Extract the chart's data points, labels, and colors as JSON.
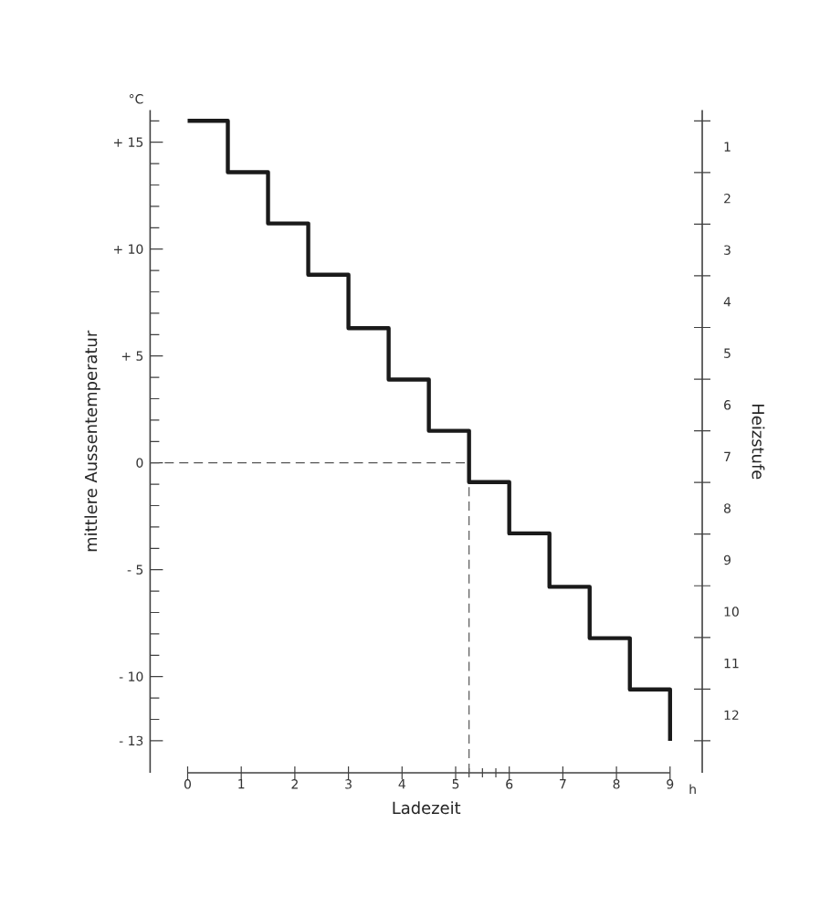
{
  "chart_data": {
    "type": "step",
    "xlabel": "Ladezeit",
    "ylabel": "mittlere Aussentemperatur",
    "y2label": "Heizstufe",
    "annotations": [
      "°C",
      "h"
    ],
    "x": [
      0,
      0.75,
      1.5,
      2.25,
      3.0,
      3.75,
      4.5,
      5.25,
      6.0,
      6.75,
      7.5,
      8.25,
      9.0
    ],
    "series": [
      {
        "color": "#1a1a1a",
        "values": [
          16,
          13.6,
          11.2,
          8.8,
          6.3,
          3.9,
          1.5,
          -0.9,
          -3.3,
          -5.8,
          -8.2,
          -10.6,
          -13
        ]
      }
    ],
    "xlim": [
      -0.7,
      9.6
    ],
    "ylim": [
      -14.5,
      16.5
    ],
    "y2lim": [
      13.121,
      0.293
    ],
    "xticks": [
      0,
      1,
      2,
      3,
      4,
      5,
      {
        "value": 5.25,
        "label": null
      },
      {
        "value": 5.5,
        "label": null
      },
      {
        "value": 5.75,
        "label": null
      },
      6,
      7,
      8,
      9
    ],
    "yticks": [
      {
        "value": 16,
        "label": null
      },
      {
        "value": 15,
        "label": "+ 15"
      },
      {
        "value": 14,
        "label": null
      },
      {
        "value": 13,
        "label": null
      },
      {
        "value": 12,
        "label": null
      },
      {
        "value": 11,
        "label": null
      },
      {
        "value": 10,
        "label": "+ 10"
      },
      {
        "value": 9,
        "label": null
      },
      {
        "value": 8,
        "label": null
      },
      {
        "value": 7,
        "label": null
      },
      {
        "value": 6,
        "label": null
      },
      {
        "value": 5,
        "label": "+ 5"
      },
      {
        "value": 4,
        "label": null
      },
      {
        "value": 3,
        "label": null
      },
      {
        "value": 2,
        "label": null
      },
      {
        "value": 1,
        "label": null
      },
      0,
      {
        "value": -1,
        "label": null
      },
      {
        "value": -2,
        "label": null
      },
      {
        "value": -3,
        "label": null
      },
      {
        "value": -4,
        "label": null
      },
      {
        "value": -5,
        "label": "- 5"
      },
      {
        "value": -6,
        "label": null
      },
      {
        "value": -7,
        "label": null
      },
      {
        "value": -8,
        "label": null
      },
      {
        "value": -9,
        "label": null
      },
      {
        "value": -10,
        "label": "- 10"
      },
      {
        "value": -11,
        "label": null
      },
      {
        "value": -12,
        "label": null
      },
      {
        "value": -13,
        "label": "- 13"
      }
    ],
    "y2ticks": [
      {
        "value": 0.5,
        "label": null
      },
      1,
      {
        "value": 1.5,
        "label": null
      },
      2,
      {
        "value": 2.5,
        "label": null
      },
      3,
      {
        "value": 3.5,
        "label": null
      },
      4,
      {
        "value": 4.5,
        "label": null
      },
      5,
      {
        "value": 5.5,
        "label": null
      },
      6,
      {
        "value": 6.5,
        "label": null
      },
      7,
      {
        "value": 7.5,
        "label": null
      },
      8,
      {
        "value": 8.5,
        "label": null
      },
      9,
      {
        "value": 9.5,
        "label": null
      },
      10,
      {
        "value": 10.5,
        "label": null
      },
      11,
      {
        "value": 11.5,
        "label": null
      },
      12,
      {
        "value": 12.5,
        "label": null
      }
    ],
    "ref_lines": [
      {
        "axis": "y",
        "value": 0,
        "color": "#555555",
        "line_style": "dashed"
      },
      {
        "axis": "x",
        "value": 5.25,
        "color": "#555555",
        "line_style": "dashed"
      }
    ]
  }
}
